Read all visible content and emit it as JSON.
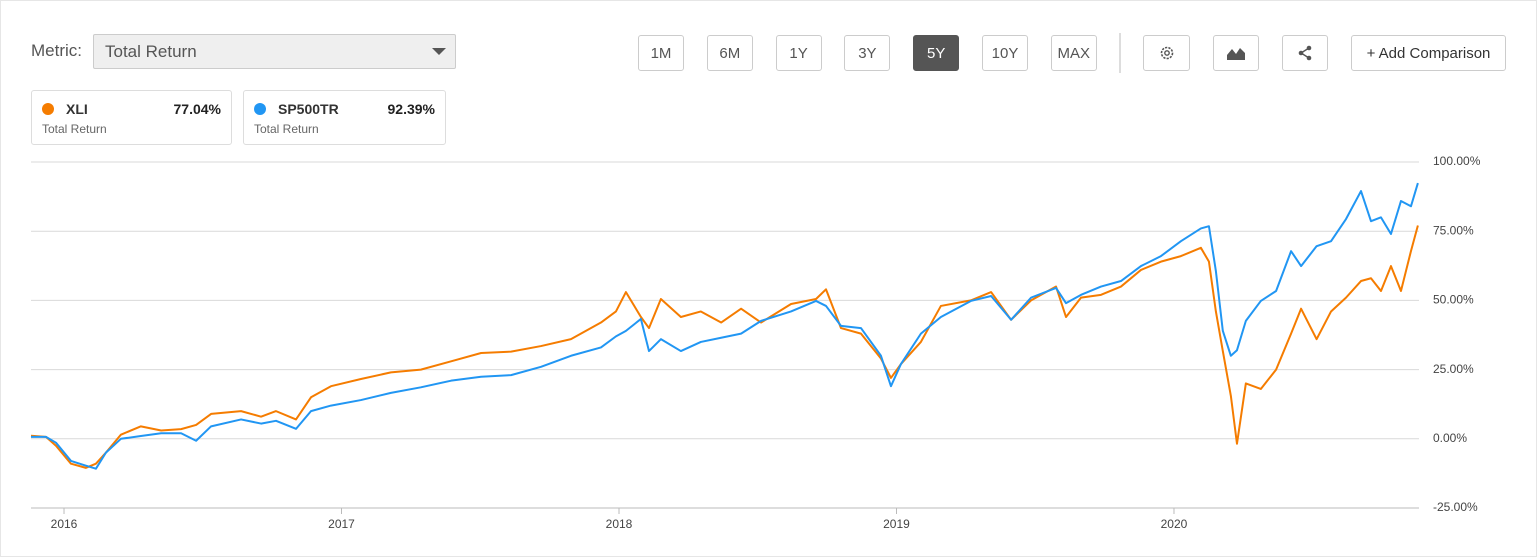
{
  "toolbar": {
    "metric_label": "Metric:",
    "metric_value": "Total Return",
    "ranges": [
      "1M",
      "6M",
      "1Y",
      "3Y",
      "5Y",
      "10Y",
      "MAX"
    ],
    "active_range": 4,
    "add_comparison": "+ Add Comparison"
  },
  "chart_data": {
    "type": "line",
    "x": [
      2015.881,
      2015.935,
      2015.971,
      2016.025,
      2016.079,
      2016.115,
      2016.151,
      2016.205,
      2016.277,
      2016.35,
      2016.422,
      2016.476,
      2016.53,
      2016.638,
      2016.71,
      2016.764,
      2016.836,
      2016.89,
      2016.962,
      2017.07,
      2017.178,
      2017.286,
      2017.395,
      2017.503,
      2017.611,
      2017.719,
      2017.827,
      2017.935,
      2017.989,
      2018.025,
      2018.079,
      2018.108,
      2018.151,
      2018.223,
      2018.295,
      2018.368,
      2018.44,
      2018.512,
      2018.62,
      2018.71,
      2018.746,
      2018.8,
      2018.872,
      2018.944,
      2018.98,
      2019.016,
      2019.088,
      2019.16,
      2019.268,
      2019.341,
      2019.413,
      2019.485,
      2019.575,
      2019.611,
      2019.665,
      2019.737,
      2019.809,
      2019.881,
      2019.953,
      2020.025,
      2020.097,
      2020.126,
      2020.151,
      2020.176,
      2020.205,
      2020.227,
      2020.259,
      2020.313,
      2020.368,
      2020.422,
      2020.458,
      2020.514,
      2020.566,
      2020.62,
      2020.674,
      2020.71,
      2020.746,
      2020.782,
      2020.818,
      2020.854,
      2020.879
    ],
    "series": [
      {
        "name": "XLI",
        "color": "#f57c00",
        "summary_label": "Total Return",
        "summary": "77.04%",
        "values": [
          1.1,
          0.7,
          -2.5,
          -9,
          -10.5,
          -9,
          -5,
          1.5,
          4.5,
          3,
          3.5,
          5,
          9,
          10,
          8,
          10,
          7,
          15,
          19,
          21.6,
          24,
          25,
          28,
          31,
          31.5,
          33.5,
          36,
          42,
          46,
          53,
          44,
          40,
          50.5,
          44,
          46,
          42,
          47,
          42,
          48.7,
          50.5,
          54,
          40,
          38,
          29,
          22,
          27,
          35,
          48,
          50,
          53,
          43,
          50,
          55,
          44,
          51,
          52,
          55,
          61,
          64,
          66,
          69,
          64,
          46,
          31.7,
          15.5,
          -1.8,
          20,
          18,
          25,
          38,
          47,
          36,
          46,
          51,
          57,
          58,
          53.4,
          62.4,
          53.4,
          67.8,
          77.04
        ]
      },
      {
        "name": "SP500TR",
        "color": "#2196f3",
        "summary_label": "Total Return",
        "summary": "92.39%",
        "values": [
          0.7,
          0.7,
          -1.4,
          -8,
          -9.7,
          -10.8,
          -5,
          0,
          1,
          2,
          2,
          -0.7,
          4.5,
          7,
          5.5,
          6.5,
          3.6,
          10,
          12,
          14,
          16.6,
          18.6,
          21,
          22.4,
          23,
          26,
          30,
          33,
          37,
          39,
          43.3,
          31.7,
          36,
          31.7,
          35,
          36.5,
          38,
          42.6,
          46,
          49.8,
          48,
          40.8,
          40,
          30,
          19,
          27,
          38,
          44,
          49.8,
          51.6,
          43,
          51,
          54.5,
          49,
          52,
          55,
          57,
          62.4,
          66,
          71.4,
          76,
          76.8,
          60.6,
          39,
          30,
          32,
          42.6,
          49.8,
          53.4,
          67.8,
          62.4,
          69.6,
          71.4,
          79.4,
          89.5,
          78.6,
          80,
          74,
          85.9,
          84,
          92.39
        ]
      }
    ],
    "xlim": [
      2015.881,
      2020.883
    ],
    "xticks": [
      2016,
      2017,
      2018,
      2019,
      2020
    ],
    "ylim": [
      -25,
      100
    ],
    "yticks": [
      {
        "value": -25,
        "label": "-25.00%"
      },
      {
        "value": 0,
        "label": "0.00%"
      },
      {
        "value": 25,
        "label": "25.00%"
      },
      {
        "value": 50,
        "label": "50.00%"
      },
      {
        "value": 75,
        "label": "75.00%"
      },
      {
        "value": 100,
        "label": "100.00%"
      }
    ],
    "grid": true
  }
}
